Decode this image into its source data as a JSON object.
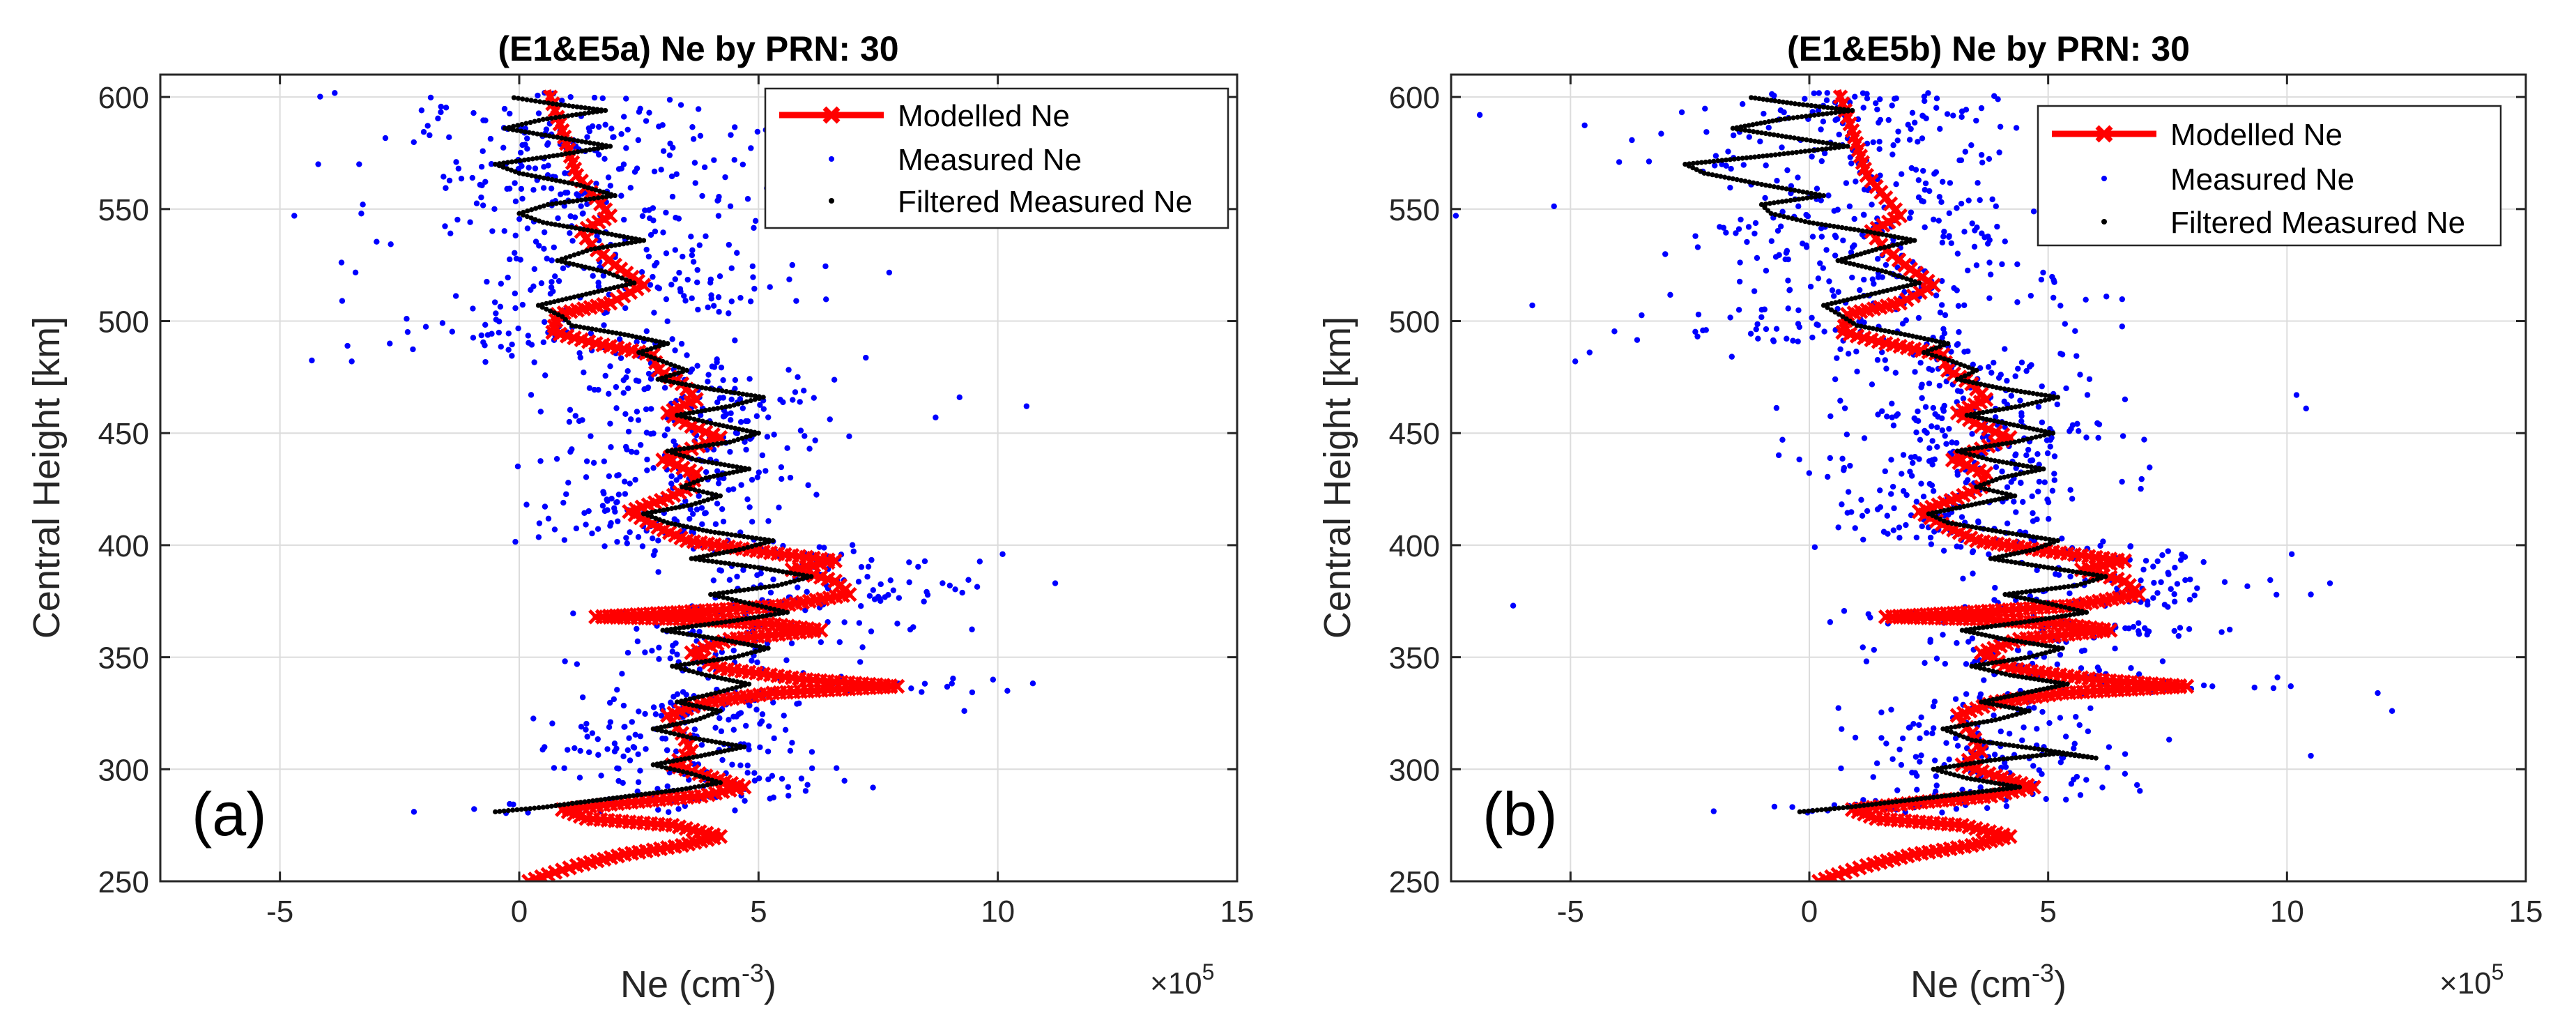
{
  "chart_data": [
    {
      "type": "scatter",
      "panel_label": "(a)",
      "title": "(E1&E5a) Ne by PRN: 30",
      "xlabel_base": "Ne (cm",
      "xlabel_sup": "-3",
      "xlabel_end": ")",
      "ylabel": "Central Height [km]",
      "x_multiplier": "×10",
      "x_multiplier_exp": "5",
      "xlim": [
        -7.5,
        15
      ],
      "ylim": [
        250,
        610
      ],
      "xticks": [
        -5,
        0,
        5,
        10,
        15
      ],
      "yticks": [
        250,
        300,
        350,
        400,
        450,
        500,
        550,
        600
      ],
      "grid": true,
      "legend_position": "top-right",
      "legend": [
        "Modelled Ne",
        "Measured Ne",
        "Filtered Measured Ne"
      ],
      "measured_seed": 11,
      "measured_outliers": [
        [
          -4.7,
          547
        ],
        [
          -4.2,
          570
        ],
        [
          -3.3,
          548
        ],
        [
          -3.7,
          509
        ],
        [
          -3.5,
          482
        ],
        [
          -2.2,
          281
        ],
        [
          10.6,
          462
        ],
        [
          10.1,
          396
        ],
        [
          9.2,
          466
        ],
        [
          11.2,
          383
        ],
        [
          10.2,
          335
        ],
        [
          9.9,
          340
        ],
        [
          9.3,
          326
        ],
        [
          7.9,
          365
        ],
        [
          8.7,
          457
        ]
      ],
      "modelled_ne": [
        [
          0.2,
          250
        ],
        [
          0.6,
          253
        ],
        [
          1.2,
          257
        ],
        [
          2.2,
          262
        ],
        [
          3.4,
          266
        ],
        [
          4.2,
          270
        ],
        [
          3.2,
          275
        ],
        [
          1.4,
          278
        ],
        [
          0.9,
          282
        ],
        [
          2.2,
          285
        ],
        [
          3.8,
          288
        ],
        [
          4.7,
          292
        ],
        [
          3.9,
          297
        ],
        [
          3.2,
          302
        ],
        [
          3.6,
          308
        ],
        [
          3.4,
          316
        ],
        [
          3.1,
          324
        ],
        [
          3.9,
          330
        ],
        [
          5.3,
          334
        ],
        [
          7.9,
          337
        ],
        [
          6.0,
          340
        ],
        [
          4.2,
          345
        ],
        [
          3.6,
          352
        ],
        [
          4.4,
          358
        ],
        [
          6.3,
          362
        ],
        [
          5.2,
          365
        ],
        [
          3.5,
          367
        ],
        [
          1.6,
          368
        ],
        [
          3.3,
          370
        ],
        [
          5.5,
          373
        ],
        [
          6.9,
          378
        ],
        [
          6.6,
          384
        ],
        [
          5.7,
          389
        ],
        [
          6.6,
          393
        ],
        [
          5.1,
          397
        ],
        [
          3.5,
          402
        ],
        [
          2.9,
          408
        ],
        [
          2.3,
          415
        ],
        [
          3.1,
          421
        ],
        [
          3.6,
          426
        ],
        [
          3.7,
          432
        ],
        [
          3.0,
          438
        ],
        [
          3.6,
          443
        ],
        [
          4.2,
          448
        ],
        [
          3.6,
          453
        ],
        [
          3.1,
          459
        ],
        [
          3.7,
          465
        ],
        [
          3.4,
          472
        ],
        [
          2.9,
          478
        ],
        [
          2.8,
          485
        ],
        [
          1.6,
          490
        ],
        [
          0.7,
          495
        ],
        [
          0.8,
          503
        ],
        [
          1.9,
          508
        ],
        [
          2.6,
          516
        ],
        [
          2.0,
          525
        ],
        [
          1.5,
          534
        ],
        [
          1.3,
          540
        ],
        [
          1.9,
          547
        ],
        [
          1.6,
          555
        ],
        [
          1.2,
          565
        ],
        [
          0.9,
          585
        ],
        [
          0.6,
          603
        ]
      ],
      "filtered_ne": [
        [
          -0.5,
          281
        ],
        [
          0.5,
          283
        ],
        [
          1.2,
          285
        ],
        [
          2.3,
          288
        ],
        [
          3.4,
          291
        ],
        [
          4.2,
          294
        ],
        [
          3.6,
          298
        ],
        [
          2.8,
          302
        ],
        [
          3.8,
          306
        ],
        [
          4.7,
          310
        ],
        [
          3.6,
          314
        ],
        [
          2.8,
          318
        ],
        [
          3.7,
          322
        ],
        [
          4.2,
          326
        ],
        [
          3.3,
          330
        ],
        [
          4.1,
          334
        ],
        [
          4.8,
          338
        ],
        [
          3.9,
          342
        ],
        [
          3.2,
          346
        ],
        [
          4.5,
          350
        ],
        [
          5.2,
          354
        ],
        [
          4.2,
          358
        ],
        [
          3.0,
          362
        ],
        [
          4.4,
          366
        ],
        [
          5.6,
          370
        ],
        [
          4.8,
          374
        ],
        [
          4.0,
          378
        ],
        [
          5.4,
          382
        ],
        [
          6.1,
          386
        ],
        [
          5.0,
          390
        ],
        [
          3.6,
          394
        ],
        [
          4.6,
          398
        ],
        [
          5.3,
          402
        ],
        [
          4.0,
          406
        ],
        [
          3.1,
          410
        ],
        [
          2.6,
          414
        ],
        [
          3.6,
          418
        ],
        [
          4.2,
          422
        ],
        [
          3.4,
          426
        ],
        [
          3.9,
          430
        ],
        [
          4.8,
          434
        ],
        [
          3.7,
          438
        ],
        [
          3.1,
          442
        ],
        [
          4.4,
          446
        ],
        [
          5.0,
          450
        ],
        [
          4.1,
          454
        ],
        [
          3.3,
          458
        ],
        [
          4.4,
          462
        ],
        [
          5.1,
          466
        ],
        [
          3.9,
          470
        ],
        [
          2.9,
          474
        ],
        [
          3.5,
          478
        ],
        [
          3.0,
          482
        ],
        [
          2.5,
          486
        ],
        [
          3.1,
          490
        ],
        [
          2.2,
          494
        ],
        [
          1.1,
          498
        ],
        [
          0.9,
          502
        ],
        [
          0.4,
          507
        ],
        [
          1.4,
          512
        ],
        [
          2.4,
          517
        ],
        [
          1.8,
          522
        ],
        [
          0.8,
          527
        ],
        [
          1.5,
          532
        ],
        [
          2.6,
          536
        ],
        [
          1.6,
          540
        ],
        [
          0.5,
          544
        ],
        [
          0.0,
          548
        ],
        [
          0.6,
          552
        ],
        [
          2.0,
          556
        ],
        [
          1.2,
          561
        ],
        [
          0.0,
          566
        ],
        [
          -0.5,
          570
        ],
        [
          0.8,
          574
        ],
        [
          1.9,
          578
        ],
        [
          0.8,
          582
        ],
        [
          -0.3,
          586
        ],
        [
          0.5,
          590
        ],
        [
          1.8,
          594
        ],
        [
          0.7,
          597
        ],
        [
          -0.2,
          600
        ]
      ]
    },
    {
      "type": "scatter",
      "panel_label": "(b)",
      "title": "(E1&E5b) Ne by PRN: 30",
      "xlabel_base": "Ne (cm",
      "xlabel_sup": "-3",
      "xlabel_end": ")",
      "ylabel": "Central Height [km]",
      "x_multiplier": "×10",
      "x_multiplier_exp": "5",
      "xlim": [
        -7.5,
        15
      ],
      "ylim": [
        250,
        610
      ],
      "xticks": [
        -5,
        0,
        5,
        10,
        15
      ],
      "yticks": [
        250,
        300,
        350,
        400,
        450,
        500,
        550,
        600
      ],
      "grid": true,
      "legend_position": "top-right",
      "legend": [
        "Modelled Ne",
        "Measured Ne",
        "Filtered Measured Ne"
      ],
      "measured_seed": 37,
      "measured_outliers": [
        [
          -6.9,
          592
        ],
        [
          -7.4,
          547
        ],
        [
          -5.8,
          507
        ],
        [
          -4.9,
          482
        ],
        [
          -4.6,
          486
        ],
        [
          -6.2,
          373
        ],
        [
          12.2,
          326
        ],
        [
          11.9,
          334
        ],
        [
          10.2,
          467
        ],
        [
          10.4,
          461
        ],
        [
          10.9,
          383
        ],
        [
          10.5,
          378
        ],
        [
          9.8,
          341
        ],
        [
          10.1,
          396
        ],
        [
          10.5,
          306
        ]
      ],
      "modelled_ne": [
        [
          0.2,
          250
        ],
        [
          0.6,
          253
        ],
        [
          1.2,
          257
        ],
        [
          2.2,
          262
        ],
        [
          3.4,
          266
        ],
        [
          4.2,
          270
        ],
        [
          3.2,
          275
        ],
        [
          1.4,
          278
        ],
        [
          0.9,
          282
        ],
        [
          2.2,
          285
        ],
        [
          3.8,
          288
        ],
        [
          4.7,
          292
        ],
        [
          3.9,
          297
        ],
        [
          3.2,
          302
        ],
        [
          3.6,
          308
        ],
        [
          3.4,
          316
        ],
        [
          3.1,
          324
        ],
        [
          3.9,
          330
        ],
        [
          5.3,
          334
        ],
        [
          7.9,
          337
        ],
        [
          6.0,
          340
        ],
        [
          4.2,
          345
        ],
        [
          3.6,
          352
        ],
        [
          4.4,
          358
        ],
        [
          6.3,
          362
        ],
        [
          5.2,
          365
        ],
        [
          3.5,
          367
        ],
        [
          1.6,
          368
        ],
        [
          3.3,
          370
        ],
        [
          5.5,
          373
        ],
        [
          6.9,
          378
        ],
        [
          6.6,
          384
        ],
        [
          5.7,
          389
        ],
        [
          6.6,
          393
        ],
        [
          5.1,
          397
        ],
        [
          3.5,
          402
        ],
        [
          2.9,
          408
        ],
        [
          2.3,
          415
        ],
        [
          3.1,
          421
        ],
        [
          3.6,
          426
        ],
        [
          3.7,
          432
        ],
        [
          3.0,
          438
        ],
        [
          3.6,
          443
        ],
        [
          4.2,
          448
        ],
        [
          3.6,
          453
        ],
        [
          3.1,
          459
        ],
        [
          3.7,
          465
        ],
        [
          3.4,
          472
        ],
        [
          2.9,
          478
        ],
        [
          2.8,
          485
        ],
        [
          1.6,
          490
        ],
        [
          0.7,
          495
        ],
        [
          0.8,
          503
        ],
        [
          1.9,
          508
        ],
        [
          2.6,
          516
        ],
        [
          2.0,
          525
        ],
        [
          1.5,
          534
        ],
        [
          1.3,
          540
        ],
        [
          1.9,
          547
        ],
        [
          1.6,
          555
        ],
        [
          1.2,
          565
        ],
        [
          0.9,
          585
        ],
        [
          0.6,
          603
        ]
      ],
      "filtered_ne": [
        [
          -0.2,
          281
        ],
        [
          0.8,
          283
        ],
        [
          2.0,
          286
        ],
        [
          3.2,
          289
        ],
        [
          4.4,
          292
        ],
        [
          3.3,
          296
        ],
        [
          2.6,
          300
        ],
        [
          3.8,
          304
        ],
        [
          5.2,
          307
        ],
        [
          6.0,
          305
        ],
        [
          4.8,
          309
        ],
        [
          3.4,
          313
        ],
        [
          2.8,
          318
        ],
        [
          3.9,
          322
        ],
        [
          4.6,
          326
        ],
        [
          3.6,
          330
        ],
        [
          4.5,
          334
        ],
        [
          5.4,
          338
        ],
        [
          4.2,
          342
        ],
        [
          3.4,
          346
        ],
        [
          4.6,
          350
        ],
        [
          5.3,
          354
        ],
        [
          4.1,
          358
        ],
        [
          3.2,
          362
        ],
        [
          4.6,
          366
        ],
        [
          5.8,
          370
        ],
        [
          5.0,
          374
        ],
        [
          4.1,
          378
        ],
        [
          5.6,
          382
        ],
        [
          6.2,
          386
        ],
        [
          5.0,
          390
        ],
        [
          3.8,
          394
        ],
        [
          4.7,
          398
        ],
        [
          5.2,
          402
        ],
        [
          4.0,
          406
        ],
        [
          2.9,
          410
        ],
        [
          2.5,
          414
        ],
        [
          3.4,
          418
        ],
        [
          4.3,
          422
        ],
        [
          3.5,
          426
        ],
        [
          4.0,
          430
        ],
        [
          4.9,
          434
        ],
        [
          3.8,
          438
        ],
        [
          3.1,
          442
        ],
        [
          4.3,
          446
        ],
        [
          5.1,
          450
        ],
        [
          4.2,
          454
        ],
        [
          3.3,
          458
        ],
        [
          4.4,
          462
        ],
        [
          5.2,
          466
        ],
        [
          4.0,
          470
        ],
        [
          3.1,
          474
        ],
        [
          3.5,
          478
        ],
        [
          3.0,
          482
        ],
        [
          2.4,
          486
        ],
        [
          2.9,
          490
        ],
        [
          2.0,
          494
        ],
        [
          1.0,
          498
        ],
        [
          0.7,
          502
        ],
        [
          0.3,
          507
        ],
        [
          1.3,
          512
        ],
        [
          2.3,
          517
        ],
        [
          1.6,
          522
        ],
        [
          0.6,
          527
        ],
        [
          1.4,
          532
        ],
        [
          2.2,
          536
        ],
        [
          1.2,
          540
        ],
        [
          0.0,
          544
        ],
        [
          -0.8,
          548
        ],
        [
          -1.0,
          552
        ],
        [
          0.3,
          556
        ],
        [
          -1.0,
          561
        ],
        [
          -2.2,
          566
        ],
        [
          -2.6,
          570
        ],
        [
          -0.8,
          574
        ],
        [
          0.8,
          578
        ],
        [
          -0.4,
          582
        ],
        [
          -1.6,
          586
        ],
        [
          -0.6,
          590
        ],
        [
          0.9,
          594
        ],
        [
          -0.3,
          597
        ],
        [
          -1.3,
          600
        ]
      ]
    }
  ]
}
